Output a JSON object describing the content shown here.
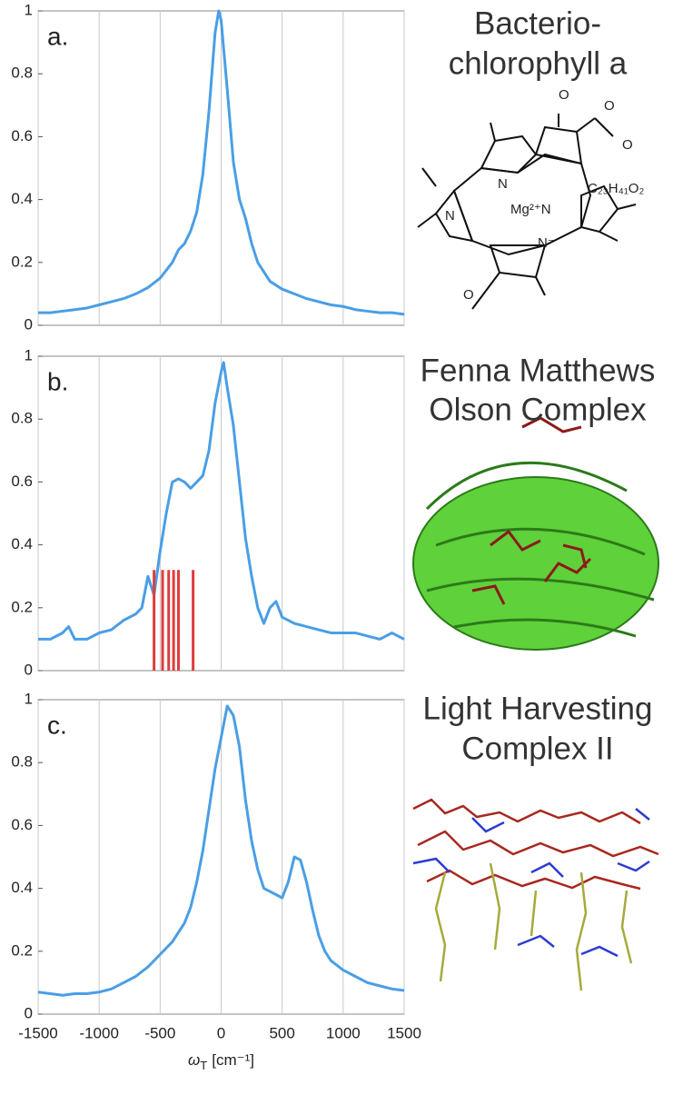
{
  "chart_data": [
    {
      "type": "line",
      "panel_label": "a.",
      "title": [
        "Bacterio-",
        "chlorophyll a"
      ],
      "structure_labels": [
        "O",
        "O",
        "O",
        "O",
        "N",
        "N",
        "Mg²⁺N",
        "N⁻",
        "C₂₃H₄₁O₂"
      ],
      "x": [
        -1500,
        -1400,
        -1300,
        -1200,
        -1100,
        -1000,
        -900,
        -800,
        -700,
        -600,
        -500,
        -400,
        -350,
        -300,
        -250,
        -200,
        -150,
        -100,
        -50,
        -20,
        0,
        50,
        100,
        150,
        200,
        250,
        300,
        400,
        500,
        600,
        700,
        800,
        900,
        1000,
        1100,
        1200,
        1300,
        1400,
        1500
      ],
      "series": [
        {
          "color": "#4a9ee6",
          "values": [
            0.04,
            0.04,
            0.045,
            0.05,
            0.055,
            0.065,
            0.075,
            0.085,
            0.1,
            0.12,
            0.15,
            0.2,
            0.24,
            0.26,
            0.3,
            0.36,
            0.48,
            0.68,
            0.93,
            1.0,
            0.97,
            0.75,
            0.52,
            0.4,
            0.34,
            0.26,
            0.2,
            0.14,
            0.115,
            0.1,
            0.085,
            0.075,
            0.065,
            0.06,
            0.05,
            0.045,
            0.04,
            0.04,
            0.035
          ]
        }
      ],
      "xlim": [
        -1500,
        1500
      ],
      "ylim": [
        0,
        1
      ],
      "xticks": [
        -1500,
        -1000,
        -500,
        0,
        500,
        1000,
        1500
      ],
      "yticks": [
        0,
        0.2,
        0.4,
        0.6,
        0.8,
        1
      ],
      "grid": true,
      "show_xtick_labels": false
    },
    {
      "type": "line",
      "panel_label": "b.",
      "title": [
        "Fenna Matthews",
        "Olson Complex"
      ],
      "x": [
        -1500,
        -1400,
        -1300,
        -1250,
        -1200,
        -1100,
        -1000,
        -900,
        -800,
        -700,
        -650,
        -600,
        -550,
        -500,
        -450,
        -400,
        -350,
        -300,
        -250,
        -200,
        -150,
        -100,
        -50,
        0,
        20,
        50,
        100,
        150,
        200,
        250,
        300,
        350,
        400,
        450,
        500,
        600,
        700,
        800,
        900,
        1000,
        1100,
        1200,
        1300,
        1400,
        1500
      ],
      "series": [
        {
          "color": "#4a9ee6",
          "values": [
            0.1,
            0.1,
            0.12,
            0.14,
            0.1,
            0.1,
            0.12,
            0.13,
            0.16,
            0.18,
            0.2,
            0.3,
            0.24,
            0.38,
            0.5,
            0.6,
            0.61,
            0.6,
            0.58,
            0.6,
            0.62,
            0.7,
            0.85,
            0.95,
            0.98,
            0.9,
            0.78,
            0.6,
            0.42,
            0.3,
            0.2,
            0.15,
            0.2,
            0.22,
            0.17,
            0.15,
            0.14,
            0.13,
            0.12,
            0.12,
            0.12,
            0.11,
            0.1,
            0.12,
            0.1
          ]
        }
      ],
      "sticks": {
        "color": "#e03c3c",
        "x": [
          -550,
          -480,
          -430,
          -390,
          -350,
          -230
        ],
        "values": [
          0.32,
          0.32,
          0.32,
          0.32,
          0.32,
          0.32
        ]
      },
      "xlim": [
        -1500,
        1500
      ],
      "ylim": [
        0,
        1
      ],
      "xticks": [
        -1500,
        -1000,
        -500,
        0,
        500,
        1000,
        1500
      ],
      "yticks": [
        0,
        0.2,
        0.4,
        0.6,
        0.8,
        1
      ],
      "grid": true,
      "show_xtick_labels": false
    },
    {
      "type": "line",
      "panel_label": "c.",
      "title": [
        "Light Harvesting",
        "Complex II"
      ],
      "x": [
        -1500,
        -1400,
        -1300,
        -1200,
        -1100,
        -1000,
        -900,
        -800,
        -700,
        -600,
        -500,
        -400,
        -350,
        -300,
        -250,
        -200,
        -150,
        -100,
        -50,
        0,
        50,
        100,
        150,
        200,
        250,
        300,
        350,
        400,
        450,
        500,
        550,
        600,
        650,
        700,
        750,
        800,
        850,
        900,
        1000,
        1100,
        1200,
        1300,
        1400,
        1500
      ],
      "series": [
        {
          "color": "#4a9ee6",
          "values": [
            0.07,
            0.065,
            0.06,
            0.065,
            0.065,
            0.07,
            0.08,
            0.1,
            0.12,
            0.15,
            0.19,
            0.23,
            0.26,
            0.29,
            0.34,
            0.42,
            0.52,
            0.65,
            0.78,
            0.88,
            0.98,
            0.95,
            0.85,
            0.68,
            0.55,
            0.46,
            0.4,
            0.39,
            0.38,
            0.37,
            0.42,
            0.5,
            0.49,
            0.42,
            0.33,
            0.25,
            0.2,
            0.17,
            0.14,
            0.12,
            0.1,
            0.09,
            0.08,
            0.075
          ]
        }
      ],
      "xlim": [
        -1500,
        1500
      ],
      "ylim": [
        0,
        1
      ],
      "xticks": [
        -1500,
        -1000,
        -500,
        0,
        500,
        1000,
        1500
      ],
      "yticks": [
        0,
        0.2,
        0.4,
        0.6,
        0.8,
        1
      ],
      "grid": true,
      "show_xtick_labels": true,
      "xlabel": {
        "symbol": "ω",
        "subscript": "T",
        "unit": "[cm⁻¹]"
      }
    }
  ]
}
